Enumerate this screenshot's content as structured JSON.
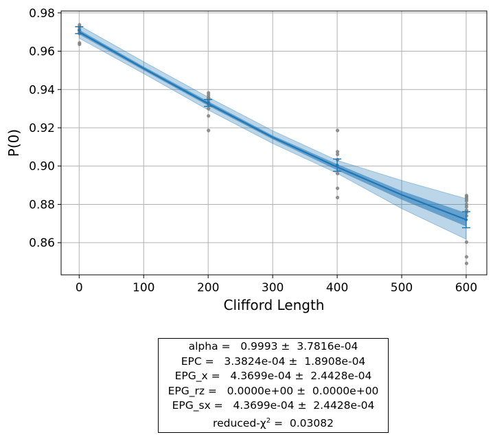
{
  "chart_data": {
    "type": "line",
    "xlabel": "Clifford Length",
    "ylabel": "P(0)",
    "xlim": [
      -28,
      632
    ],
    "ylim": [
      0.8432,
      0.981
    ],
    "xticks": [
      0,
      100,
      200,
      300,
      400,
      500,
      600
    ],
    "yticks": [
      0.86,
      0.88,
      0.9,
      0.92,
      0.94,
      0.96,
      0.98
    ],
    "xtick_labels": [
      "0",
      "100",
      "200",
      "300",
      "400",
      "500",
      "600"
    ],
    "ytick_labels": [
      "0.86",
      "0.88",
      "0.90",
      "0.92",
      "0.94",
      "0.96",
      "0.98"
    ],
    "grid": true,
    "fit_curve": {
      "x": [
        0,
        100,
        200,
        300,
        400,
        500,
        600
      ],
      "y": [
        0.97,
        0.951,
        0.9326,
        0.915,
        0.8995,
        0.885,
        0.872
      ]
    },
    "band_1sigma": {
      "lower": [
        0.9688,
        0.95,
        0.9315,
        0.914,
        0.8978,
        0.8825,
        0.8685
      ],
      "upper": [
        0.9712,
        0.952,
        0.9338,
        0.916,
        0.901,
        0.887,
        0.8755
      ]
    },
    "band_3sigma": {
      "lower": [
        0.9668,
        0.9483,
        0.9293,
        0.9118,
        0.8962,
        0.8778,
        0.8618
      ],
      "upper": [
        0.9735,
        0.9545,
        0.936,
        0.9185,
        0.903,
        0.8925,
        0.883
      ]
    },
    "mean_points": {
      "x": [
        0,
        200,
        400,
        600
      ],
      "y": [
        0.971,
        0.933,
        0.9005,
        0.872
      ],
      "err": [
        0.0018,
        0.0018,
        0.0032,
        0.0042
      ]
    },
    "raw_points": {
      "x": [
        0,
        0,
        0,
        0,
        0,
        0,
        0,
        0,
        200,
        200,
        200,
        200,
        200,
        200,
        200,
        200,
        200,
        200,
        400,
        400,
        400,
        400,
        400,
        400,
        400,
        600,
        600,
        600,
        600,
        600,
        600,
        600,
        600,
        600,
        600,
        600,
        600
      ],
      "y": [
        0.9738,
        0.9728,
        0.9718,
        0.9708,
        0.97,
        0.9692,
        0.9643,
        0.9636,
        0.9382,
        0.937,
        0.9358,
        0.9346,
        0.9333,
        0.932,
        0.93,
        0.9262,
        0.9186,
        0.9354,
        0.9186,
        0.9075,
        0.9061,
        0.9033,
        0.8961,
        0.8884,
        0.8836,
        0.8846,
        0.8838,
        0.8828,
        0.8818,
        0.88,
        0.8787,
        0.8769,
        0.8758,
        0.874,
        0.8603,
        0.8526,
        0.8492
      ]
    },
    "colors": {
      "fit_line": "#1f77b4",
      "band": "#1f77b4",
      "raw_points": "#808080",
      "grid": "#b0b0b0"
    }
  },
  "fit_report": {
    "lines": [
      "alpha =   0.9993 ±  3.7816e-04",
      "EPC =   3.3824e-04 ±  1.8908e-04",
      "EPG_x =   4.3699e-04 ±  2.4428e-04",
      "EPG_rz =   0.0000e+00 ±  0.0000e+00",
      "EPG_sx =   4.3699e-04 ±  2.4428e-04"
    ],
    "chi_label": "reduced-χ",
    "chi_exponent": "2",
    "chi_value": " =  0.03082"
  }
}
